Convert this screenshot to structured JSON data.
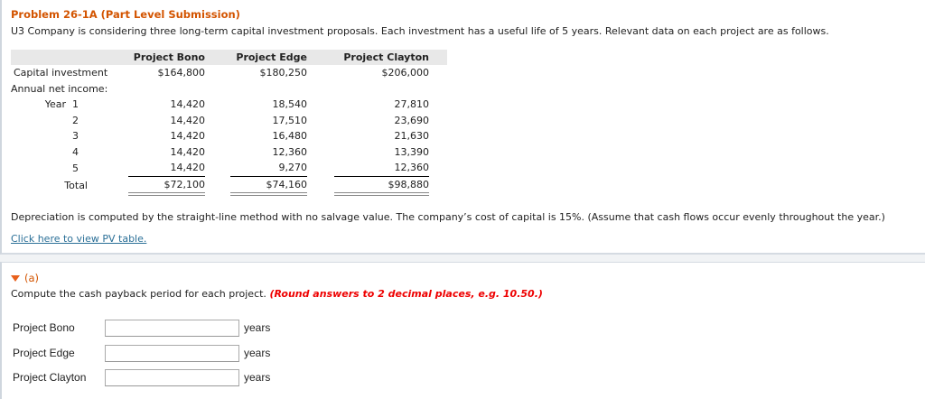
{
  "problem": {
    "title": "Problem 26-1A (Part Level Submission)",
    "intro": "U3 Company is considering three long-term capital investment proposals. Each investment has a useful life of 5 years. Relevant data on each project are as follows.",
    "table": {
      "headers": [
        "",
        "Project Bono",
        "Project Edge",
        "Project Clayton"
      ],
      "capital": {
        "label": "Capital investment",
        "values": [
          "$164,800",
          "$180,250",
          "$206,000"
        ]
      },
      "annual_label": "Annual net income:",
      "years": [
        {
          "label": "Year  1",
          "values": [
            "14,420",
            "18,540",
            "27,810"
          ]
        },
        {
          "label": "2",
          "values": [
            "14,420",
            "17,510",
            "23,690"
          ]
        },
        {
          "label": "3",
          "values": [
            "14,420",
            "16,480",
            "21,630"
          ]
        },
        {
          "label": "4",
          "values": [
            "14,420",
            "12,360",
            "13,390"
          ]
        },
        {
          "label": "5",
          "values": [
            "14,420",
            "9,270",
            "12,360"
          ]
        }
      ],
      "total": {
        "label": "Total",
        "values": [
          "$72,100",
          "$74,160",
          "$98,880"
        ]
      }
    },
    "depreciation": "Depreciation is computed by the straight-line method with no salvage value. The company’s cost of capital is 15%. (Assume that cash flows occur evenly throughout the year.)",
    "pv_link": "Click here to view PV table."
  },
  "part_a": {
    "label": "(a)",
    "question": "Compute the cash payback period for each project.",
    "instruction": "(Round answers to 2 decimal places, e.g. 10.50.)",
    "fields": [
      {
        "label": "Project Bono",
        "value": "",
        "unit": "years"
      },
      {
        "label": "Project Edge",
        "value": "",
        "unit": "years"
      },
      {
        "label": "Project Clayton",
        "value": "",
        "unit": "years"
      }
    ]
  }
}
